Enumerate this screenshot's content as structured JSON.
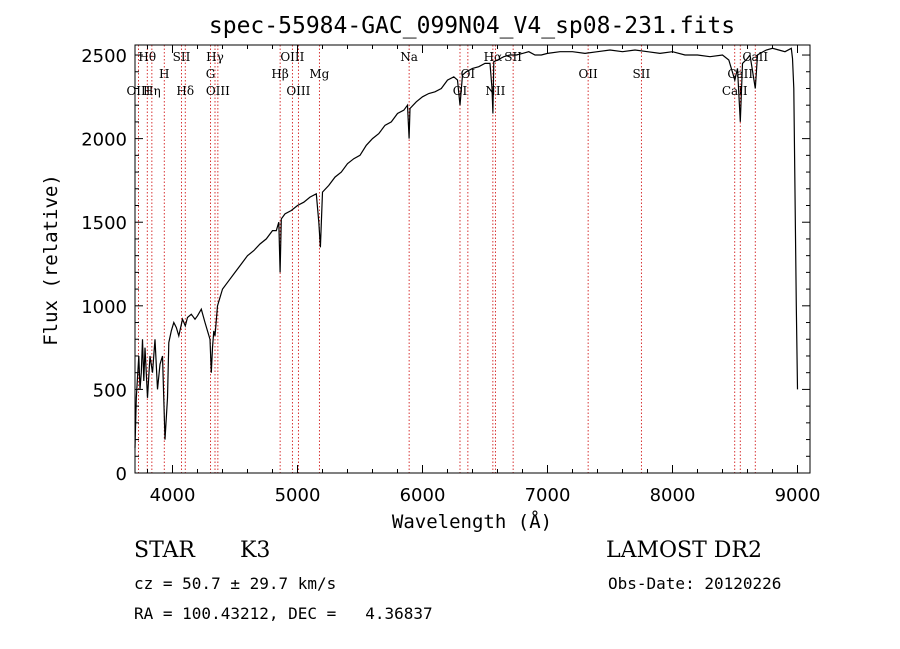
{
  "title": "spec-55984-GAC_099N04_V4_sp08-231.fits",
  "xlabel": "Wavelength (Å)",
  "ylabel": "Flux (relative)",
  "info": {
    "class": "STAR",
    "subclass": "K3",
    "survey": "LAMOST DR2",
    "cz": "cz = 50.7 ± 29.7 km/s",
    "obs_date": "Obs-Date: 20120226",
    "coords": "RA = 100.43212, DEC =   4.36837"
  },
  "chart_data": {
    "type": "line",
    "xlim": [
      3700,
      9100
    ],
    "ylim": [
      0,
      2560
    ],
    "xticks": [
      4000,
      5000,
      6000,
      7000,
      8000,
      9000
    ],
    "yticks": [
      0,
      500,
      1000,
      1500,
      2000,
      2500
    ],
    "grid": false,
    "series": [
      {
        "x": [
          3700,
          3710,
          3730,
          3740,
          3750,
          3760,
          3770,
          3780,
          3800,
          3820,
          3840,
          3860,
          3880,
          3900,
          3920,
          3940,
          3960,
          3970,
          3990,
          4010,
          4030,
          4050,
          4080,
          4102,
          4120,
          4150,
          4180,
          4200,
          4230,
          4260,
          4280,
          4300,
          4310,
          4320,
          4330,
          4340,
          4360,
          4400,
          4450,
          4500,
          4550,
          4600,
          4650,
          4700,
          4750,
          4800,
          4830,
          4850,
          4861,
          4870,
          4900,
          4950,
          5000,
          5050,
          5100,
          5150,
          5170,
          5183,
          5200,
          5250,
          5300,
          5350,
          5400,
          5450,
          5500,
          5550,
          5600,
          5650,
          5700,
          5750,
          5800,
          5850,
          5880,
          5893,
          5900,
          5950,
          6000,
          6050,
          6100,
          6150,
          6200,
          6250,
          6280,
          6300,
          6320,
          6350,
          6400,
          6450,
          6500,
          6540,
          6556,
          6563,
          6570,
          6600,
          6650,
          6700,
          6750,
          6800,
          6850,
          6900,
          6950,
          7000,
          7100,
          7200,
          7300,
          7400,
          7500,
          7600,
          7700,
          7800,
          7900,
          8000,
          8100,
          8200,
          8300,
          8400,
          8450,
          8498,
          8520,
          8542,
          8560,
          8600,
          8620,
          8662,
          8680,
          8700,
          8750,
          8800,
          8850,
          8900,
          8950,
          8960,
          8970,
          8990,
          9000
        ],
        "y": [
          150,
          450,
          700,
          500,
          600,
          800,
          550,
          750,
          450,
          700,
          600,
          800,
          500,
          650,
          700,
          200,
          450,
          780,
          850,
          900,
          870,
          820,
          920,
          880,
          930,
          950,
          920,
          940,
          980,
          900,
          850,
          800,
          600,
          750,
          850,
          820,
          1000,
          1100,
          1150,
          1200,
          1250,
          1300,
          1330,
          1370,
          1400,
          1450,
          1450,
          1500,
          1200,
          1520,
          1550,
          1570,
          1600,
          1620,
          1650,
          1670,
          1500,
          1350,
          1680,
          1720,
          1770,
          1800,
          1850,
          1880,
          1900,
          1960,
          2000,
          2030,
          2080,
          2100,
          2150,
          2170,
          2200,
          2000,
          2180,
          2220,
          2250,
          2270,
          2280,
          2300,
          2350,
          2370,
          2350,
          2200,
          2380,
          2400,
          2420,
          2430,
          2450,
          2450,
          2300,
          2150,
          2460,
          2470,
          2490,
          2500,
          2500,
          2510,
          2520,
          2500,
          2500,
          2510,
          2520,
          2520,
          2510,
          2520,
          2530,
          2520,
          2530,
          2520,
          2510,
          2520,
          2500,
          2500,
          2490,
          2500,
          2470,
          2350,
          2420,
          2100,
          2450,
          2480,
          2500,
          2300,
          2500,
          2510,
          2530,
          2540,
          2530,
          2520,
          2540,
          2480,
          2300,
          1000,
          500
        ]
      }
    ],
    "spectral_lines": [
      {
        "name": "Hθ",
        "wl": 3798,
        "row": 1
      },
      {
        "name": "H",
        "wl": 3934,
        "row": 2
      },
      {
        "name": "OIII",
        "wl": 3728,
        "row": 3
      },
      {
        "name": "Hη",
        "wl": 3835,
        "row": 3
      },
      {
        "name": "SII",
        "wl": 4072,
        "row": 1
      },
      {
        "name": "Hδ",
        "wl": 4102,
        "row": 3
      },
      {
        "name": "Hγ",
        "wl": 4340,
        "row": 1
      },
      {
        "name": "G",
        "wl": 4304,
        "row": 2
      },
      {
        "name": "OIII",
        "wl": 4363,
        "row": 3
      },
      {
        "name": "OIII",
        "wl": 4959,
        "row": 1
      },
      {
        "name": "Hβ",
        "wl": 4861,
        "row": 2
      },
      {
        "name": "OIII",
        "wl": 5007,
        "row": 3
      },
      {
        "name": "Mg",
        "wl": 5175,
        "row": 2
      },
      {
        "name": "Na",
        "wl": 5893,
        "row": 1
      },
      {
        "name": "OI",
        "wl": 6300,
        "row": 3
      },
      {
        "name": "OI",
        "wl": 6363,
        "row": 2
      },
      {
        "name": "Hα",
        "wl": 6563,
        "row": 1
      },
      {
        "name": "NII",
        "wl": 6583,
        "row": 3
      },
      {
        "name": "SII",
        "wl": 6725,
        "row": 1
      },
      {
        "name": "OII",
        "wl": 7325,
        "row": 2
      },
      {
        "name": "SII",
        "wl": 7751,
        "row": 2
      },
      {
        "name": "CaII",
        "wl": 8498,
        "row": 3
      },
      {
        "name": "CaII",
        "wl": 8542,
        "row": 2
      },
      {
        "name": "CaII",
        "wl": 8662,
        "row": 1
      }
    ],
    "colors": {
      "spectrum": "#000000",
      "lines": "#cc0000",
      "axes": "#000000"
    }
  }
}
